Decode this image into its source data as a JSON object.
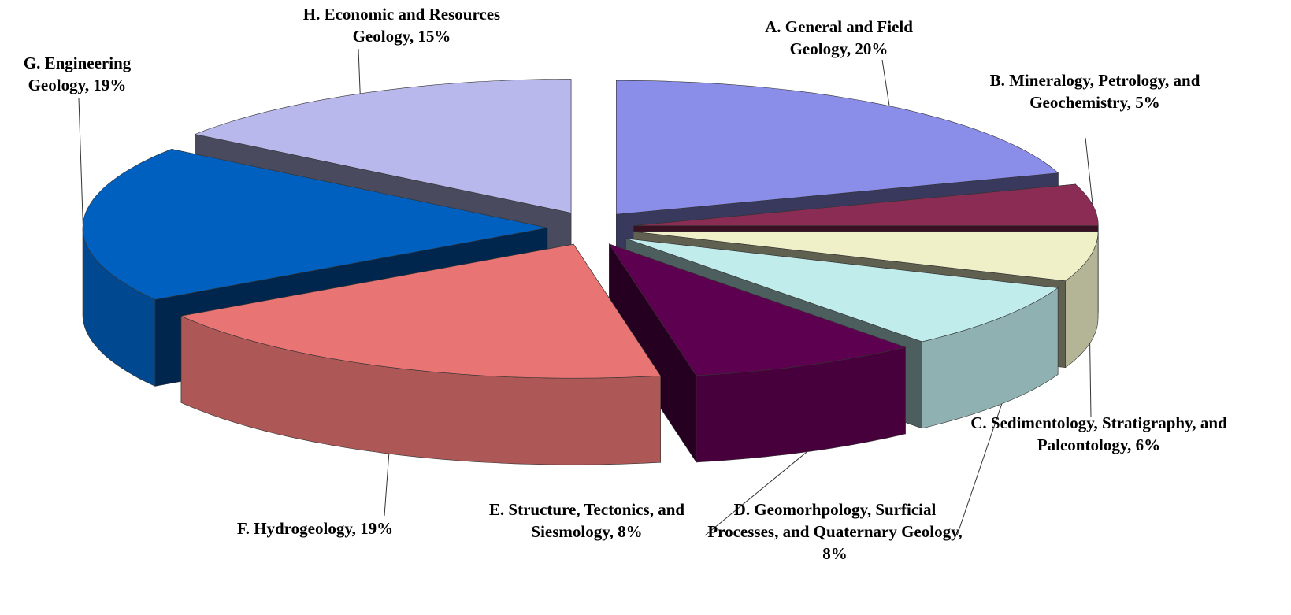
{
  "chart_data": {
    "type": "pie3d",
    "values": [
      20,
      5,
      6,
      8,
      8,
      19,
      19,
      15
    ],
    "value_labels": [
      "A.  General and Field Geology, 20%",
      "B. Mineralogy, Petrology, and Geochemistry, 5%",
      "C. Sedimentology, Stratigraphy, and Paleontology, 6%",
      "D. Geomorhpology, Surficial Processes, and Quaternary Geology, 8%",
      "E. Structure, Tectonics, and Siesmology, 8%",
      "F.  Hydrogeology, 19%",
      "G.  Engineering Geology, 19%",
      "H.  Economic and Resources Geology, 15%"
    ],
    "colors": [
      "#8b8ee8",
      "#8b2c55",
      "#f0f0c8",
      "#c0ecec",
      "#5e0050",
      "#e87474",
      "#0060c0",
      "#b8b8ec"
    ]
  }
}
